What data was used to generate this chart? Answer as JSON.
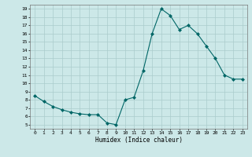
{
  "x": [
    0,
    1,
    2,
    3,
    4,
    5,
    6,
    7,
    8,
    9,
    10,
    11,
    12,
    13,
    14,
    15,
    16,
    17,
    18,
    19,
    20,
    21,
    22,
    23
  ],
  "y": [
    8.5,
    7.8,
    7.2,
    6.8,
    6.5,
    6.3,
    6.2,
    6.2,
    5.2,
    5.0,
    8.0,
    8.3,
    11.5,
    16.0,
    19.0,
    18.2,
    16.5,
    17.0,
    16.0,
    14.5,
    13.0,
    11.0,
    10.5,
    10.5
  ],
  "xlim": [
    -0.5,
    23.5
  ],
  "ylim": [
    4.5,
    19.5
  ],
  "yticks": [
    5,
    6,
    7,
    8,
    9,
    10,
    11,
    12,
    13,
    14,
    15,
    16,
    17,
    18,
    19
  ],
  "xticks": [
    0,
    1,
    2,
    3,
    4,
    5,
    6,
    7,
    8,
    9,
    10,
    11,
    12,
    13,
    14,
    15,
    16,
    17,
    18,
    19,
    20,
    21,
    22,
    23
  ],
  "xlabel": "Humidex (Indice chaleur)",
  "line_color": "#006666",
  "marker_color": "#006666",
  "bg_color": "#cce8e8",
  "grid_color": "#aacccc"
}
